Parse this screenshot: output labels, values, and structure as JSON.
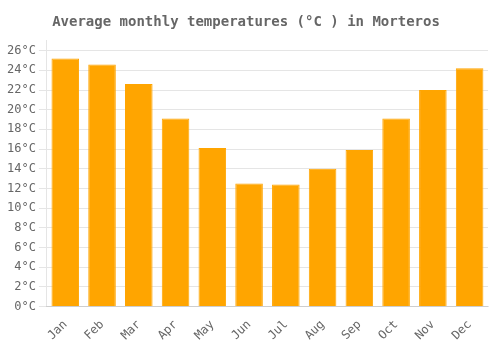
{
  "chart_data": {
    "type": "bar",
    "title": "Average monthly temperatures (°C ) in Morteros",
    "categories": [
      "Jan",
      "Feb",
      "Mar",
      "Apr",
      "May",
      "Jun",
      "Jul",
      "Aug",
      "Sep",
      "Oct",
      "Nov",
      "Dec"
    ],
    "values": [
      25.2,
      24.6,
      22.6,
      19.1,
      16.1,
      12.5,
      12.4,
      14.0,
      15.9,
      19.1,
      22.0,
      24.2
    ],
    "color": "#FFA500",
    "ylim": [
      0,
      27
    ],
    "yticks": [
      {
        "value": 0,
        "label": "0°C"
      },
      {
        "value": 2,
        "label": "2°C"
      },
      {
        "value": 4,
        "label": "4°C"
      },
      {
        "value": 6,
        "label": "6°C"
      },
      {
        "value": 8,
        "label": "8°C"
      },
      {
        "value": 10,
        "label": "10°C"
      },
      {
        "value": 12,
        "label": "12°C"
      },
      {
        "value": 14,
        "label": "14°C"
      },
      {
        "value": 16,
        "label": "16°C"
      },
      {
        "value": 18,
        "label": "18°C"
      },
      {
        "value": 20,
        "label": "20°C"
      },
      {
        "value": 22,
        "label": "22°C"
      },
      {
        "value": 24,
        "label": "24°C"
      },
      {
        "value": 26,
        "label": "26°C"
      }
    ],
    "grid": true
  }
}
